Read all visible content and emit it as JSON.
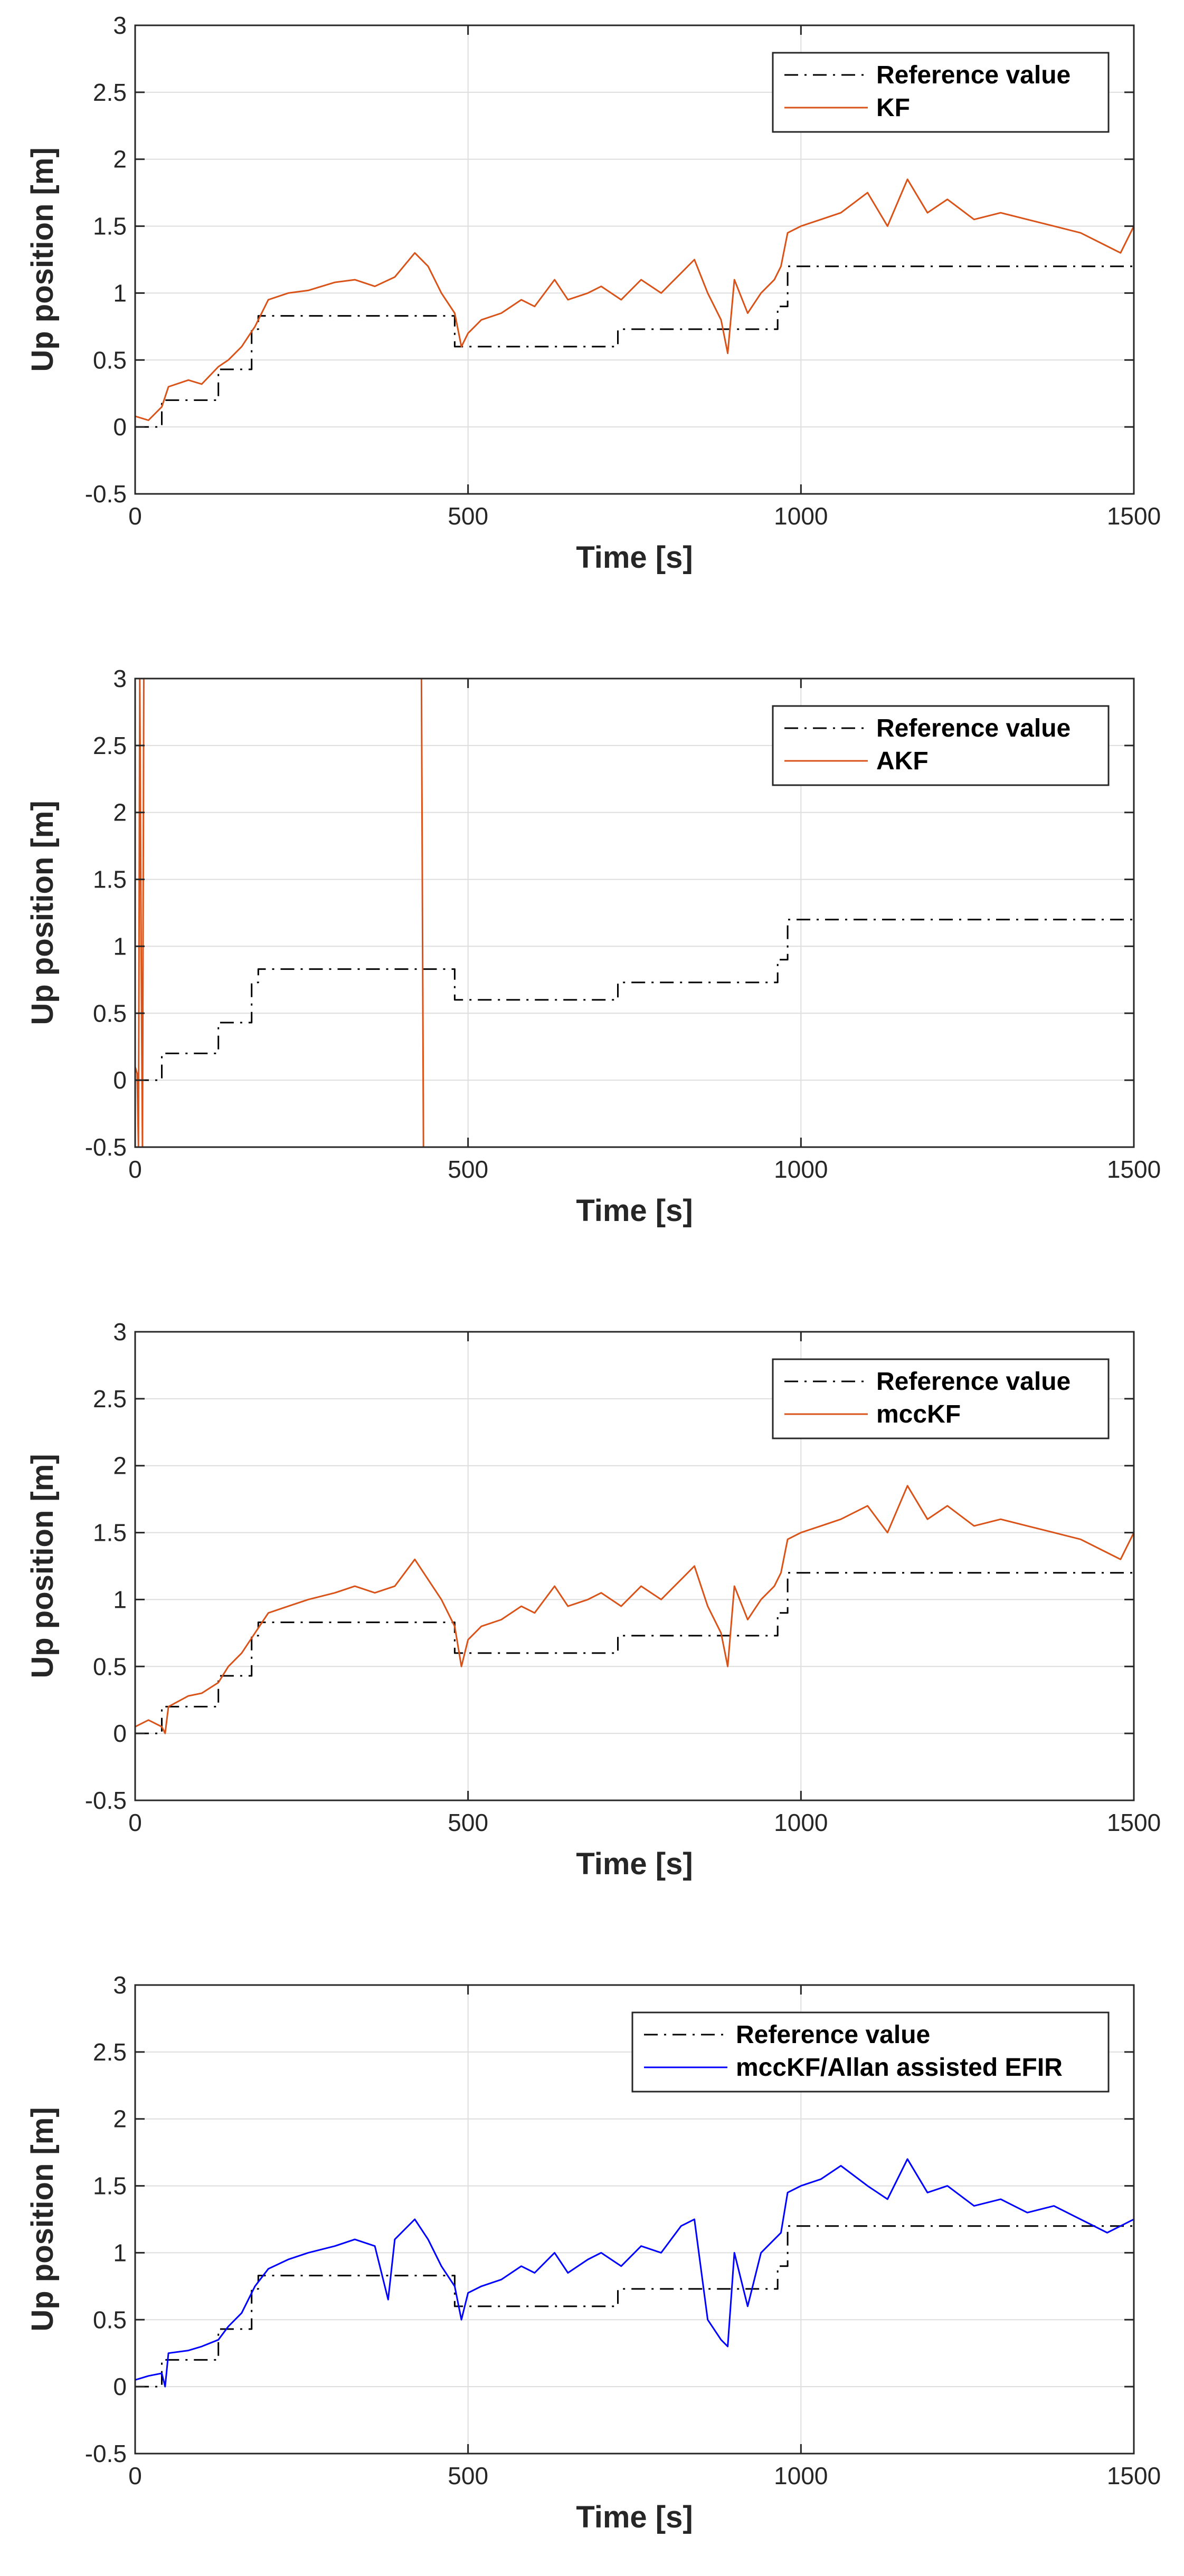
{
  "figure": {
    "background": "#ffffff",
    "grid_color": "#dedede",
    "axis_color": "#262626"
  },
  "chart_data": [
    {
      "type": "line",
      "title": "",
      "xlabel": "Time [s]",
      "ylabel": "Up position [m]",
      "xlim": [
        0,
        1500
      ],
      "ylim": [
        -0.5,
        3
      ],
      "xticks": [
        0,
        500,
        1000,
        1500
      ],
      "yticks": [
        -0.5,
        0,
        0.5,
        1,
        1.5,
        2,
        2.5,
        3
      ],
      "ytick_labels": [
        "-0.5",
        "0",
        "0.5",
        "1",
        "1.5",
        "2",
        "2.5",
        "3"
      ],
      "grid": true,
      "legend_position": "top-right",
      "series": [
        {
          "name": "Reference value",
          "style": "dash-dot",
          "color": "#000000",
          "x": [
            0,
            40,
            40,
            125,
            125,
            175,
            175,
            185,
            185,
            480,
            480,
            725,
            725,
            965,
            965,
            980,
            980,
            1500
          ],
          "y": [
            0,
            0,
            0.2,
            0.2,
            0.43,
            0.43,
            0.73,
            0.73,
            0.83,
            0.83,
            0.6,
            0.6,
            0.73,
            0.73,
            0.9,
            0.9,
            1.2,
            1.2
          ]
        },
        {
          "name": "KF",
          "style": "solid",
          "color": "#d95319",
          "x": [
            0,
            20,
            40,
            50,
            80,
            100,
            125,
            140,
            160,
            180,
            200,
            230,
            260,
            300,
            330,
            360,
            390,
            420,
            440,
            460,
            480,
            490,
            500,
            520,
            550,
            580,
            600,
            630,
            650,
            680,
            700,
            730,
            760,
            790,
            820,
            840,
            860,
            880,
            890,
            900,
            920,
            940,
            960,
            970,
            980,
            1000,
            1030,
            1060,
            1100,
            1130,
            1160,
            1190,
            1220,
            1260,
            1300,
            1340,
            1380,
            1420,
            1460,
            1480,
            1500
          ],
          "y": [
            0.08,
            0.05,
            0.15,
            0.3,
            0.35,
            0.32,
            0.45,
            0.5,
            0.6,
            0.75,
            0.95,
            1.0,
            1.02,
            1.08,
            1.1,
            1.05,
            1.12,
            1.3,
            1.2,
            1.0,
            0.85,
            0.6,
            0.7,
            0.8,
            0.85,
            0.95,
            0.9,
            1.1,
            0.95,
            1.0,
            1.05,
            0.95,
            1.1,
            1.0,
            1.15,
            1.25,
            1.0,
            0.8,
            0.55,
            1.1,
            0.85,
            1.0,
            1.1,
            1.2,
            1.45,
            1.5,
            1.55,
            1.6,
            1.75,
            1.5,
            1.85,
            1.6,
            1.7,
            1.55,
            1.6,
            1.55,
            1.5,
            1.45,
            1.35,
            1.3,
            1.5
          ]
        }
      ]
    },
    {
      "type": "line",
      "title": "",
      "xlabel": "Time [s]",
      "ylabel": "Up position [m]",
      "xlim": [
        0,
        1500
      ],
      "ylim": [
        -0.5,
        3
      ],
      "xticks": [
        0,
        500,
        1000,
        1500
      ],
      "yticks": [
        -0.5,
        0,
        0.5,
        1,
        1.5,
        2,
        2.5,
        3
      ],
      "ytick_labels": [
        "-0.5",
        "0",
        "0.5",
        "1",
        "1.5",
        "2",
        "2.5",
        "3"
      ],
      "grid": true,
      "legend_position": "top-right",
      "series": [
        {
          "name": "Reference value",
          "style": "dash-dot",
          "color": "#000000",
          "x": [
            0,
            40,
            40,
            125,
            125,
            175,
            175,
            185,
            185,
            480,
            480,
            725,
            725,
            965,
            965,
            980,
            980,
            1500
          ],
          "y": [
            0,
            0,
            0.2,
            0.2,
            0.43,
            0.43,
            0.73,
            0.73,
            0.83,
            0.83,
            0.6,
            0.6,
            0.73,
            0.73,
            0.9,
            0.9,
            1.2,
            1.2
          ]
        },
        {
          "name": "AKF",
          "style": "solid",
          "color": "#d95319",
          "x": [
            0,
            3,
            5,
            7,
            9,
            11,
            13,
            430,
            433,
            436
          ],
          "y": [
            0.1,
            0.05,
            -0.5,
            3,
            1.0,
            -0.5,
            3,
            3,
            -0.5,
            -0.5
          ]
        }
      ]
    },
    {
      "type": "line",
      "title": "",
      "xlabel": "Time [s]",
      "ylabel": "Up position [m]",
      "xlim": [
        0,
        1500
      ],
      "ylim": [
        -0.5,
        3
      ],
      "xticks": [
        0,
        500,
        1000,
        1500
      ],
      "yticks": [
        -0.5,
        0,
        0.5,
        1,
        1.5,
        2,
        2.5,
        3
      ],
      "ytick_labels": [
        "-0.5",
        "0",
        "0.5",
        "1",
        "1.5",
        "2",
        "2.5",
        "3"
      ],
      "grid": true,
      "legend_position": "top-right",
      "series": [
        {
          "name": "Reference value",
          "style": "dash-dot",
          "color": "#000000",
          "x": [
            0,
            40,
            40,
            125,
            125,
            175,
            175,
            185,
            185,
            480,
            480,
            725,
            725,
            965,
            965,
            980,
            980,
            1500
          ],
          "y": [
            0,
            0,
            0.2,
            0.2,
            0.43,
            0.43,
            0.73,
            0.73,
            0.83,
            0.83,
            0.6,
            0.6,
            0.73,
            0.73,
            0.9,
            0.9,
            1.2,
            1.2
          ]
        },
        {
          "name": "mccKF",
          "style": "solid",
          "color": "#d95319",
          "x": [
            0,
            20,
            40,
            45,
            50,
            80,
            100,
            125,
            140,
            160,
            180,
            200,
            230,
            260,
            300,
            330,
            360,
            390,
            420,
            440,
            460,
            480,
            490,
            500,
            520,
            550,
            580,
            600,
            630,
            650,
            680,
            700,
            730,
            760,
            790,
            820,
            840,
            860,
            880,
            890,
            900,
            920,
            940,
            960,
            970,
            980,
            1000,
            1030,
            1060,
            1100,
            1130,
            1160,
            1190,
            1220,
            1260,
            1300,
            1340,
            1380,
            1420,
            1460,
            1480,
            1500
          ],
          "y": [
            0.05,
            0.1,
            0.05,
            0.0,
            0.2,
            0.28,
            0.3,
            0.38,
            0.5,
            0.6,
            0.75,
            0.9,
            0.95,
            1.0,
            1.05,
            1.1,
            1.05,
            1.1,
            1.3,
            1.15,
            1.0,
            0.8,
            0.5,
            0.7,
            0.8,
            0.85,
            0.95,
            0.9,
            1.1,
            0.95,
            1.0,
            1.05,
            0.95,
            1.1,
            1.0,
            1.15,
            1.25,
            0.95,
            0.75,
            0.5,
            1.1,
            0.85,
            1.0,
            1.1,
            1.2,
            1.45,
            1.5,
            1.55,
            1.6,
            1.7,
            1.5,
            1.85,
            1.6,
            1.7,
            1.55,
            1.6,
            1.55,
            1.5,
            1.45,
            1.35,
            1.3,
            1.5
          ]
        }
      ]
    },
    {
      "type": "line",
      "title": "",
      "xlabel": "Time [s]",
      "ylabel": "Up position [m]",
      "xlim": [
        0,
        1500
      ],
      "ylim": [
        -0.5,
        3
      ],
      "xticks": [
        0,
        500,
        1000,
        1500
      ],
      "yticks": [
        -0.5,
        0,
        0.5,
        1,
        1.5,
        2,
        2.5,
        3
      ],
      "ytick_labels": [
        "-0.5",
        "0",
        "0.5",
        "1",
        "1.5",
        "2",
        "2.5",
        "3"
      ],
      "grid": true,
      "legend_position": "top-right",
      "series": [
        {
          "name": "Reference value",
          "style": "dash-dot",
          "color": "#000000",
          "x": [
            0,
            40,
            40,
            125,
            125,
            175,
            175,
            185,
            185,
            480,
            480,
            725,
            725,
            965,
            965,
            980,
            980,
            1500
          ],
          "y": [
            0,
            0,
            0.2,
            0.2,
            0.43,
            0.43,
            0.73,
            0.73,
            0.83,
            0.83,
            0.6,
            0.6,
            0.73,
            0.73,
            0.9,
            0.9,
            1.2,
            1.2
          ]
        },
        {
          "name": "mccKF/Allan assisted EFIR",
          "style": "solid",
          "color": "#0000ff",
          "x": [
            0,
            20,
            40,
            45,
            50,
            80,
            100,
            125,
            140,
            160,
            180,
            200,
            230,
            260,
            300,
            330,
            360,
            380,
            390,
            420,
            440,
            460,
            480,
            490,
            500,
            520,
            550,
            580,
            600,
            630,
            650,
            680,
            700,
            730,
            760,
            790,
            820,
            840,
            860,
            880,
            890,
            900,
            920,
            940,
            960,
            970,
            980,
            1000,
            1030,
            1060,
            1100,
            1130,
            1160,
            1190,
            1220,
            1260,
            1300,
            1340,
            1380,
            1420,
            1460,
            1480,
            1500
          ],
          "y": [
            0.05,
            0.08,
            0.1,
            0.0,
            0.25,
            0.27,
            0.3,
            0.35,
            0.45,
            0.55,
            0.75,
            0.88,
            0.95,
            1.0,
            1.05,
            1.1,
            1.05,
            0.65,
            1.1,
            1.25,
            1.1,
            0.9,
            0.75,
            0.5,
            0.7,
            0.75,
            0.8,
            0.9,
            0.85,
            1.0,
            0.85,
            0.95,
            1.0,
            0.9,
            1.05,
            1.0,
            1.2,
            1.25,
            0.5,
            0.35,
            0.3,
            1.0,
            0.6,
            1.0,
            1.1,
            1.15,
            1.45,
            1.5,
            1.55,
            1.65,
            1.5,
            1.4,
            1.7,
            1.45,
            1.5,
            1.35,
            1.4,
            1.3,
            1.35,
            1.25,
            1.15,
            1.2,
            1.25
          ]
        }
      ]
    }
  ]
}
